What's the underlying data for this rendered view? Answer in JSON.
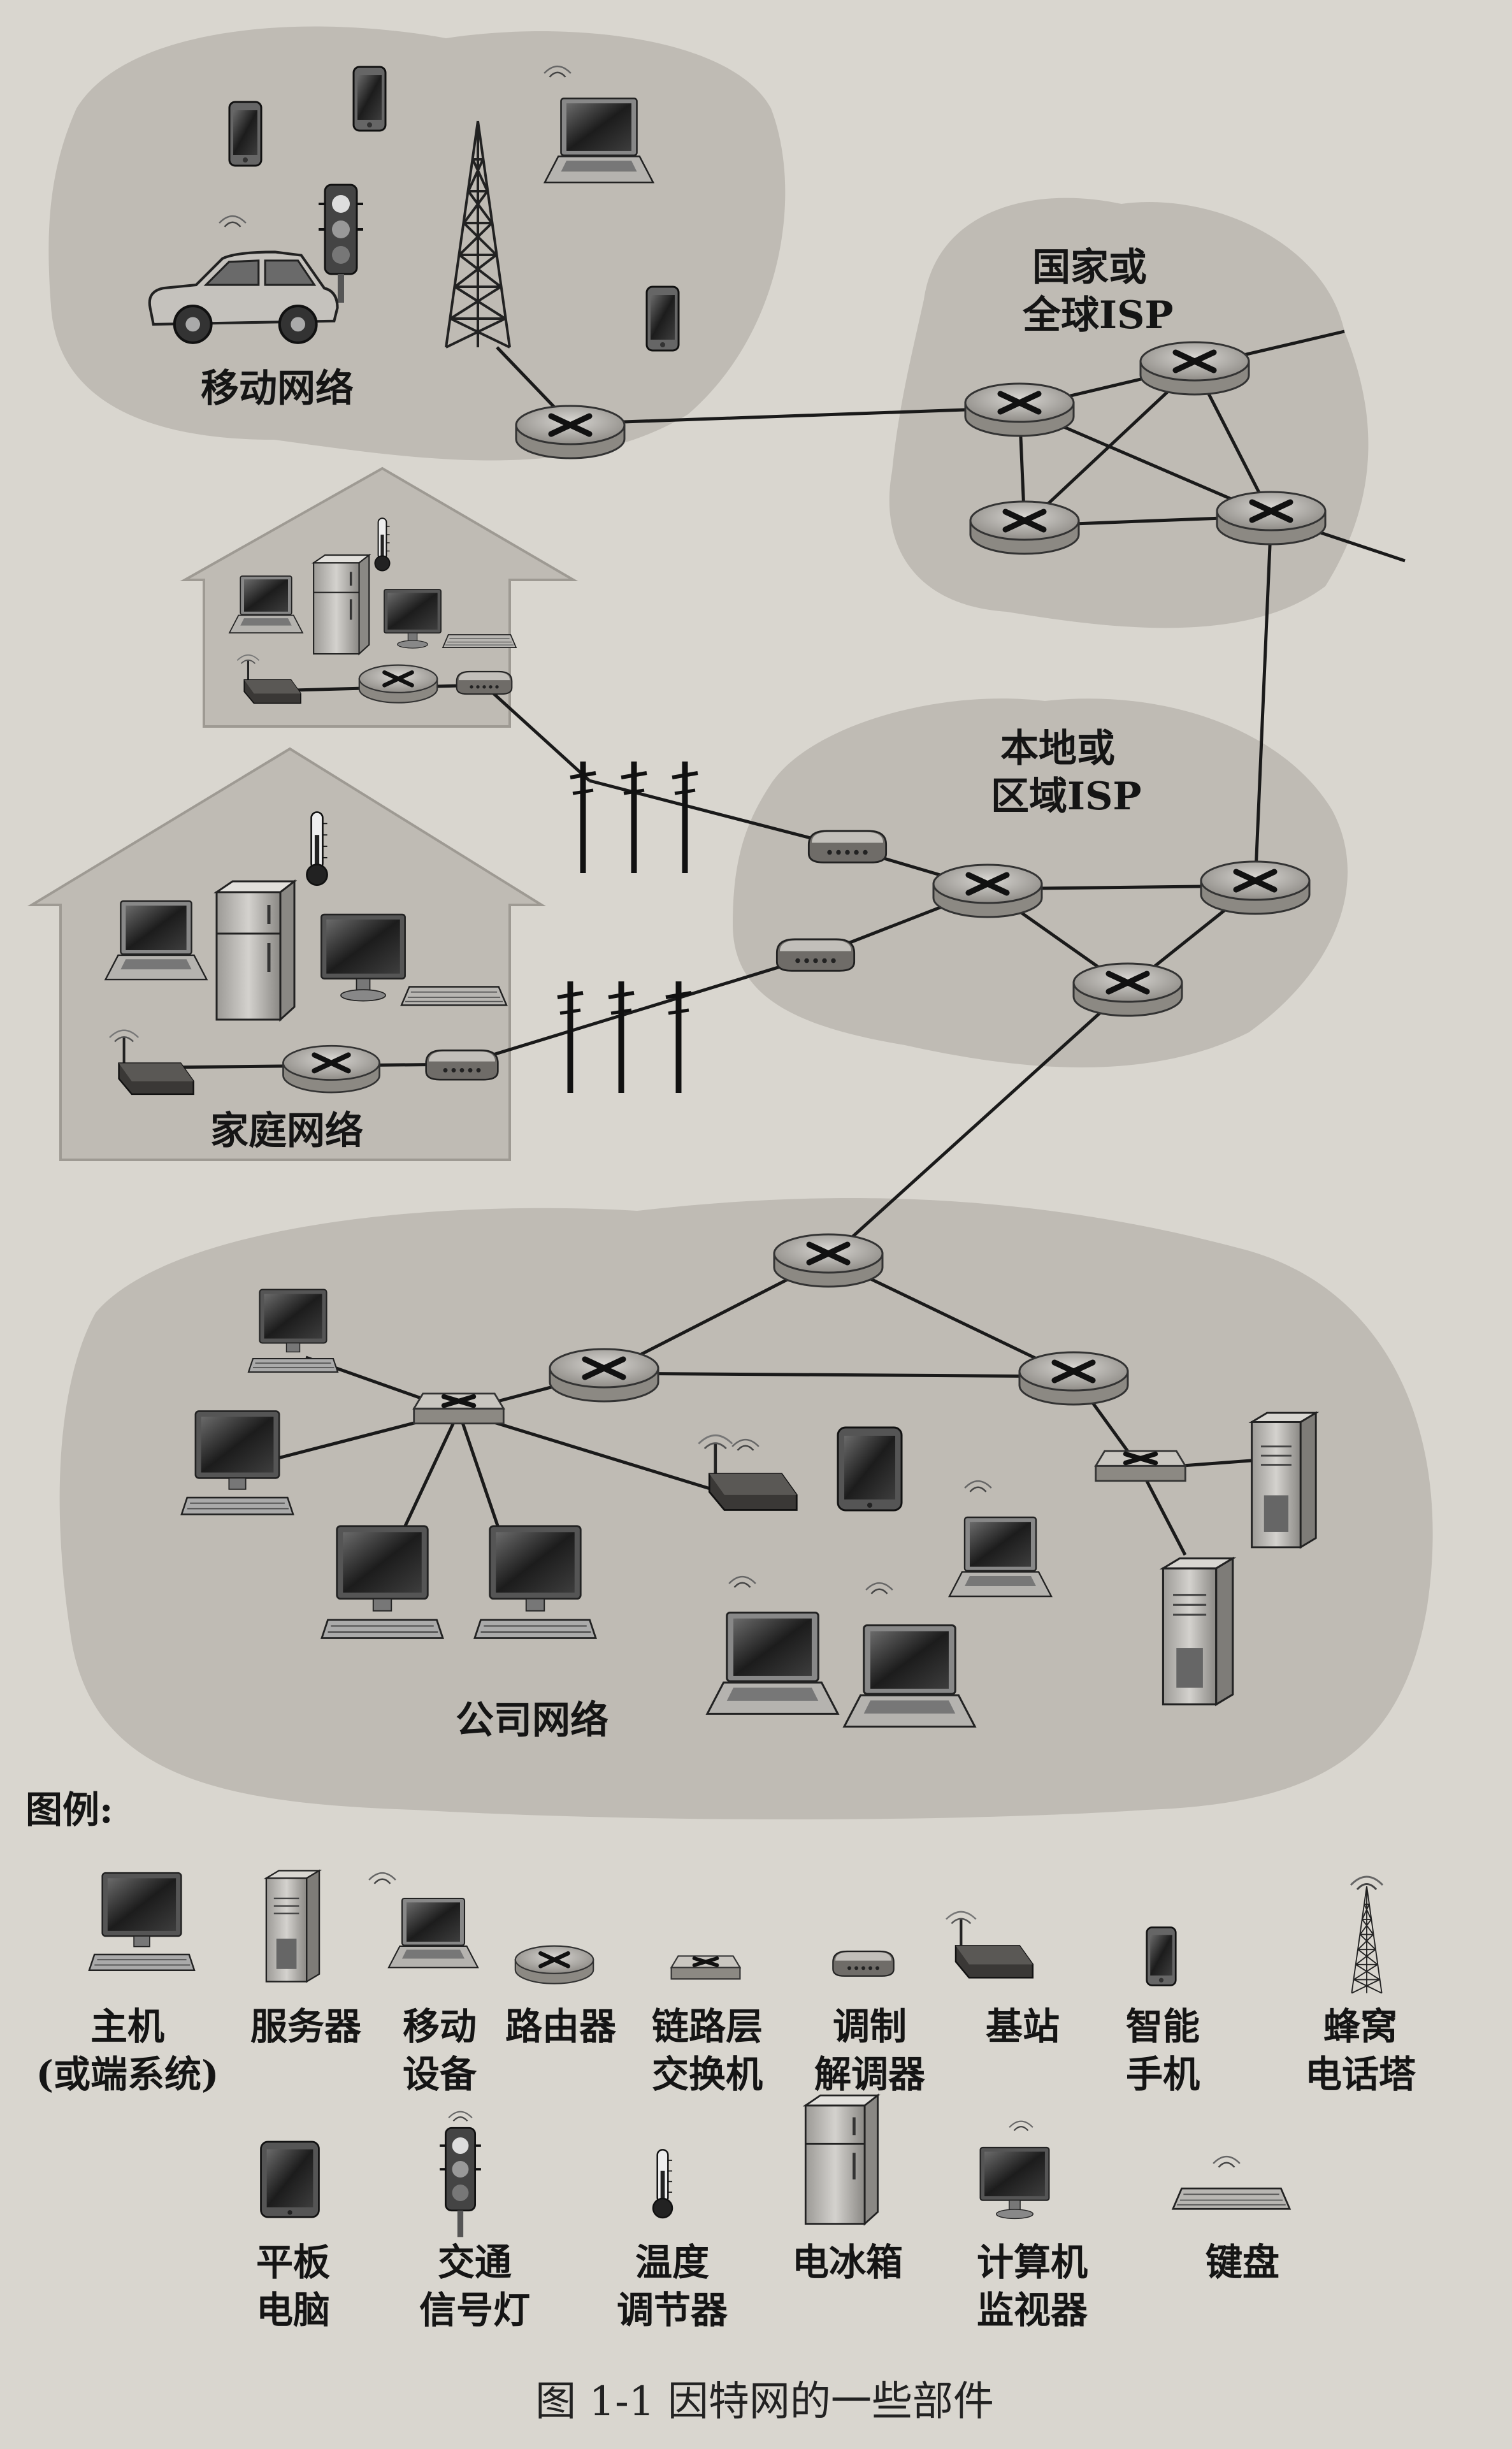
{
  "regions": {
    "mobile": "移动网络",
    "national_isp": [
      "国家或",
      "全球ISP"
    ],
    "local_isp": [
      "本地或",
      "区域ISP"
    ],
    "home": "家庭网络",
    "enterprise": "公司网络"
  },
  "legend": {
    "title": "图例:",
    "items": [
      {
        "key": "host",
        "lines": [
          "主机",
          "(或端系统)"
        ]
      },
      {
        "key": "server",
        "lines": [
          "服务器"
        ]
      },
      {
        "key": "mobile",
        "lines": [
          "移动",
          "设备"
        ]
      },
      {
        "key": "router",
        "lines": [
          "路由器"
        ]
      },
      {
        "key": "switch",
        "lines": [
          "链路层",
          "交换机"
        ]
      },
      {
        "key": "modem",
        "lines": [
          "调制",
          "解调器"
        ]
      },
      {
        "key": "basestation",
        "lines": [
          "基站"
        ]
      },
      {
        "key": "smartphone",
        "lines": [
          "智能",
          "手机"
        ]
      },
      {
        "key": "tower",
        "lines": [
          "蜂窝",
          "电话塔"
        ]
      },
      {
        "key": "tablet",
        "lines": [
          "平板",
          "电脑"
        ]
      },
      {
        "key": "trafficlight",
        "lines": [
          "交通",
          "信号灯"
        ]
      },
      {
        "key": "thermostat",
        "lines": [
          "温度",
          "调节器"
        ]
      },
      {
        "key": "fridge",
        "lines": [
          "电冰箱"
        ]
      },
      {
        "key": "monitor",
        "lines": [
          "计算机",
          "监视器"
        ]
      },
      {
        "key": "keyboard",
        "lines": [
          "键盘"
        ]
      }
    ]
  },
  "caption": "图 1-1    因特网的一些部件"
}
